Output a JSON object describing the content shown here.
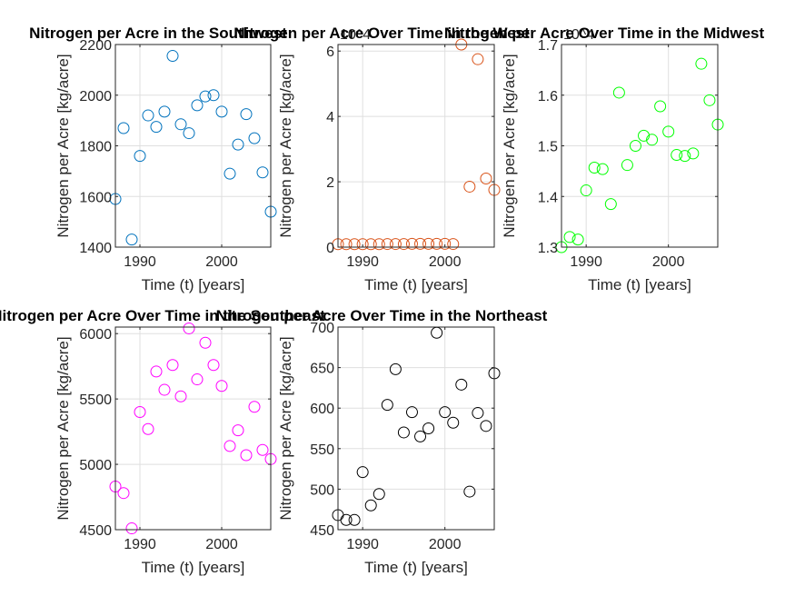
{
  "figure": {
    "background": "#ffffff",
    "axis_color": "#262626",
    "grid_color": "#dfdfdf"
  },
  "chart_data": [
    {
      "type": "scatter",
      "title": "Nitrogen per Acre in the Southwest",
      "xlabel": "Time (t) [years]",
      "ylabel": "Nitrogen per Acre [kg/acre]",
      "xlim": [
        1987,
        2006
      ],
      "ylim": [
        1400,
        2200
      ],
      "xticks": [
        1990,
        2000
      ],
      "yticks": [
        1400,
        1600,
        1800,
        2000,
        2200
      ],
      "ytick_labels": [
        "1400",
        "1600",
        "1800",
        "2000",
        "2200"
      ],
      "exponent": "",
      "grid": true,
      "color": "#0072BD",
      "series": [
        {
          "x": [
            1987,
            1988,
            1989,
            1990,
            1991,
            1992,
            1993,
            1994,
            1995,
            1996,
            1997,
            1998,
            1999,
            2000,
            2001,
            2002,
            2003,
            2004,
            2005,
            2006
          ],
          "y": [
            1590,
            1870,
            1430,
            1760,
            1920,
            1875,
            1935,
            2155,
            1885,
            1850,
            1960,
            1995,
            2000,
            1935,
            1690,
            1805,
            1925,
            1830,
            1695,
            1540
          ]
        }
      ]
    },
    {
      "type": "scatter",
      "title": "Nitrogen per Acre Over Time in the West",
      "xlabel": "Time (t) [years]",
      "ylabel": "Nitrogen per Acre [kg/acre]",
      "xlim": [
        1987,
        2006
      ],
      "ylim": [
        0,
        62000
      ],
      "xticks": [
        1990,
        2000
      ],
      "yticks": [
        0,
        20000,
        40000,
        60000
      ],
      "ytick_labels": [
        "0",
        "2",
        "4",
        "6"
      ],
      "exponent": "10^4",
      "grid": true,
      "color": "#D95319",
      "series": [
        {
          "x": [
            1987,
            1988,
            1989,
            1990,
            1991,
            1992,
            1993,
            1994,
            1995,
            1996,
            1997,
            1998,
            1999,
            2000,
            2001,
            2002,
            2003,
            2004,
            2005,
            2006
          ],
          "y": [
            900,
            900,
            900,
            900,
            900,
            900,
            950,
            950,
            950,
            1000,
            1000,
            1000,
            1000,
            1000,
            950,
            62000,
            18500,
            57500,
            21000,
            17500
          ]
        }
      ]
    },
    {
      "type": "scatter",
      "title": "Nitrogen per Acre Over Time in the Midwest",
      "xlabel": "Time (t) [years]",
      "ylabel": "Nitrogen per Acre [kg/acre]",
      "xlim": [
        1987,
        2006
      ],
      "ylim": [
        13000,
        17000
      ],
      "xticks": [
        1990,
        2000
      ],
      "yticks": [
        13000,
        14000,
        15000,
        16000,
        17000
      ],
      "ytick_labels": [
        "1.3",
        "1.4",
        "1.5",
        "1.6",
        "1.7"
      ],
      "exponent": "10^4",
      "grid": true,
      "color": "#00FF00",
      "series": [
        {
          "x": [
            1987,
            1988,
            1989,
            1990,
            1991,
            1992,
            1993,
            1994,
            1995,
            1996,
            1997,
            1998,
            1999,
            2000,
            2001,
            2002,
            2003,
            2004,
            2005,
            2006
          ],
          "y": [
            13000,
            13200,
            13150,
            14120,
            14570,
            14540,
            13850,
            16050,
            14620,
            15000,
            15200,
            15120,
            15780,
            15280,
            14820,
            14800,
            14850,
            16620,
            15900,
            15420
          ]
        }
      ]
    },
    {
      "type": "scatter",
      "title": "Nitrogen per Acre Over Time in the Southeast",
      "xlabel": "Time (t) [years]",
      "ylabel": "Nitrogen per Acre [kg/acre]",
      "xlim": [
        1987,
        2006
      ],
      "ylim": [
        4500,
        6050
      ],
      "xticks": [
        1990,
        2000
      ],
      "yticks": [
        4500,
        5000,
        5500,
        6000
      ],
      "ytick_labels": [
        "4500",
        "5000",
        "5500",
        "6000"
      ],
      "exponent": "",
      "grid": true,
      "color": "#FF00FF",
      "series": [
        {
          "x": [
            1987,
            1988,
            1989,
            1990,
            1991,
            1992,
            1993,
            1994,
            1995,
            1996,
            1997,
            1998,
            1999,
            2000,
            2001,
            2002,
            2003,
            2004,
            2005,
            2006
          ],
          "y": [
            4830,
            4780,
            4510,
            5400,
            5270,
            5710,
            5570,
            5760,
            5520,
            6040,
            5650,
            5930,
            5760,
            5600,
            5140,
            5260,
            5070,
            5440,
            5110,
            5040
          ]
        }
      ]
    },
    {
      "type": "scatter",
      "title": "Nitrogen per Acre Over Time in the Northeast",
      "xlabel": "Time (t) [years]",
      "ylabel": "Nitrogen per Acre [kg/acre]",
      "xlim": [
        1987,
        2006
      ],
      "ylim": [
        450,
        700
      ],
      "xticks": [
        1990,
        2000
      ],
      "yticks": [
        450,
        500,
        550,
        600,
        650,
        700
      ],
      "ytick_labels": [
        "450",
        "500",
        "550",
        "600",
        "650",
        "700"
      ],
      "exponent": "",
      "grid": true,
      "color": "#000000",
      "series": [
        {
          "x": [
            1987,
            1988,
            1989,
            1990,
            1991,
            1992,
            1993,
            1994,
            1995,
            1996,
            1997,
            1998,
            1999,
            2000,
            2001,
            2002,
            2003,
            2004,
            2005,
            2006
          ],
          "y": [
            468,
            462,
            462,
            521,
            480,
            494,
            604,
            648,
            570,
            595,
            565,
            575,
            693,
            595,
            582,
            629,
            497,
            594,
            578,
            643
          ]
        }
      ]
    }
  ]
}
